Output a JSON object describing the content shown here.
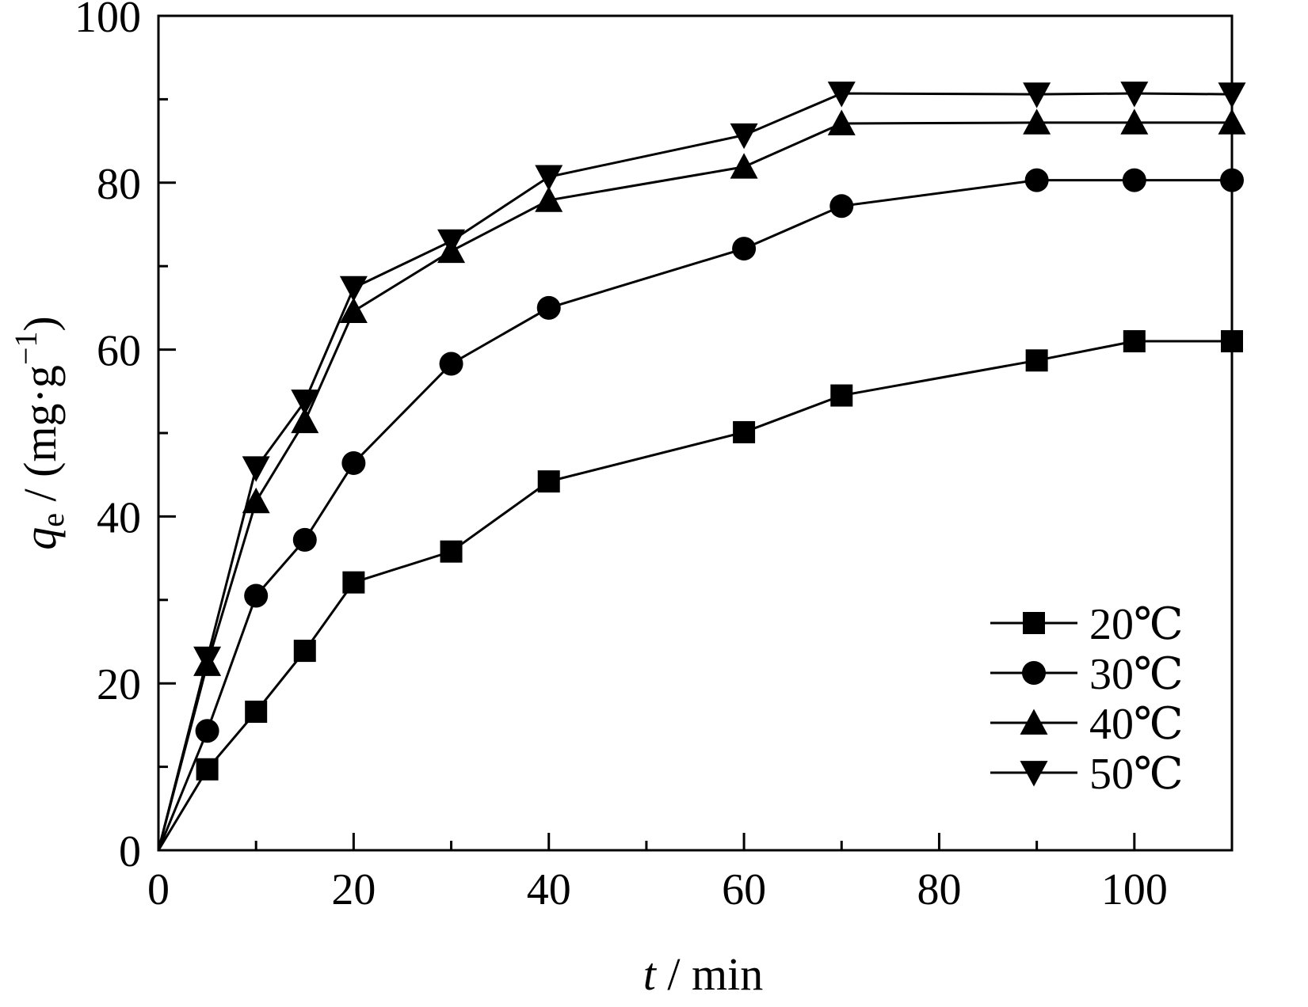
{
  "chart_data": {
    "type": "line",
    "title": "",
    "xlabel_italic": "t",
    "xlabel_rest": " / min",
    "ylabel_italic": "q",
    "ylabel_sub": "e",
    "ylabel_rest": " / (mg·g",
    "ylabel_sup": "−1",
    "ylabel_close": ")",
    "xlim": [
      0,
      110
    ],
    "ylim": [
      0,
      100
    ],
    "xticks": [
      0,
      20,
      40,
      60,
      80,
      100
    ],
    "yticks": [
      0,
      20,
      40,
      60,
      80,
      100
    ],
    "xtick_labels": [
      "0",
      "20",
      "40",
      "60",
      "80",
      "100"
    ],
    "ytick_labels": [
      "0",
      "20",
      "40",
      "60",
      "80",
      "100"
    ],
    "grid": false,
    "legend_position": "lower-right",
    "x": [
      0,
      5,
      10,
      15,
      20,
      30,
      40,
      60,
      70,
      90,
      100,
      110
    ],
    "series": [
      {
        "name": "20℃",
        "marker": "square",
        "values": [
          0,
          9.7,
          16.6,
          23.9,
          32.1,
          35.8,
          44.2,
          50.1,
          54.5,
          58.7,
          61.0,
          61.0
        ]
      },
      {
        "name": "30℃",
        "marker": "circle",
        "values": [
          0,
          14.3,
          30.5,
          37.2,
          46.4,
          58.3,
          65.0,
          72.1,
          77.2,
          80.3,
          80.3,
          80.3
        ]
      },
      {
        "name": "40℃",
        "marker": "triangle-up",
        "values": [
          0,
          22.3,
          41.8,
          51.4,
          64.6,
          71.8,
          77.9,
          81.9,
          87.1,
          87.2,
          87.2,
          87.2
        ]
      },
      {
        "name": "50℃",
        "marker": "triangle-down",
        "values": [
          0,
          23.0,
          45.8,
          53.8,
          67.4,
          73.0,
          80.7,
          85.7,
          90.7,
          90.6,
          90.7,
          90.6
        ]
      }
    ],
    "colors": {
      "line": "#000000",
      "marker": "#000000",
      "background": "#ffffff"
    }
  }
}
